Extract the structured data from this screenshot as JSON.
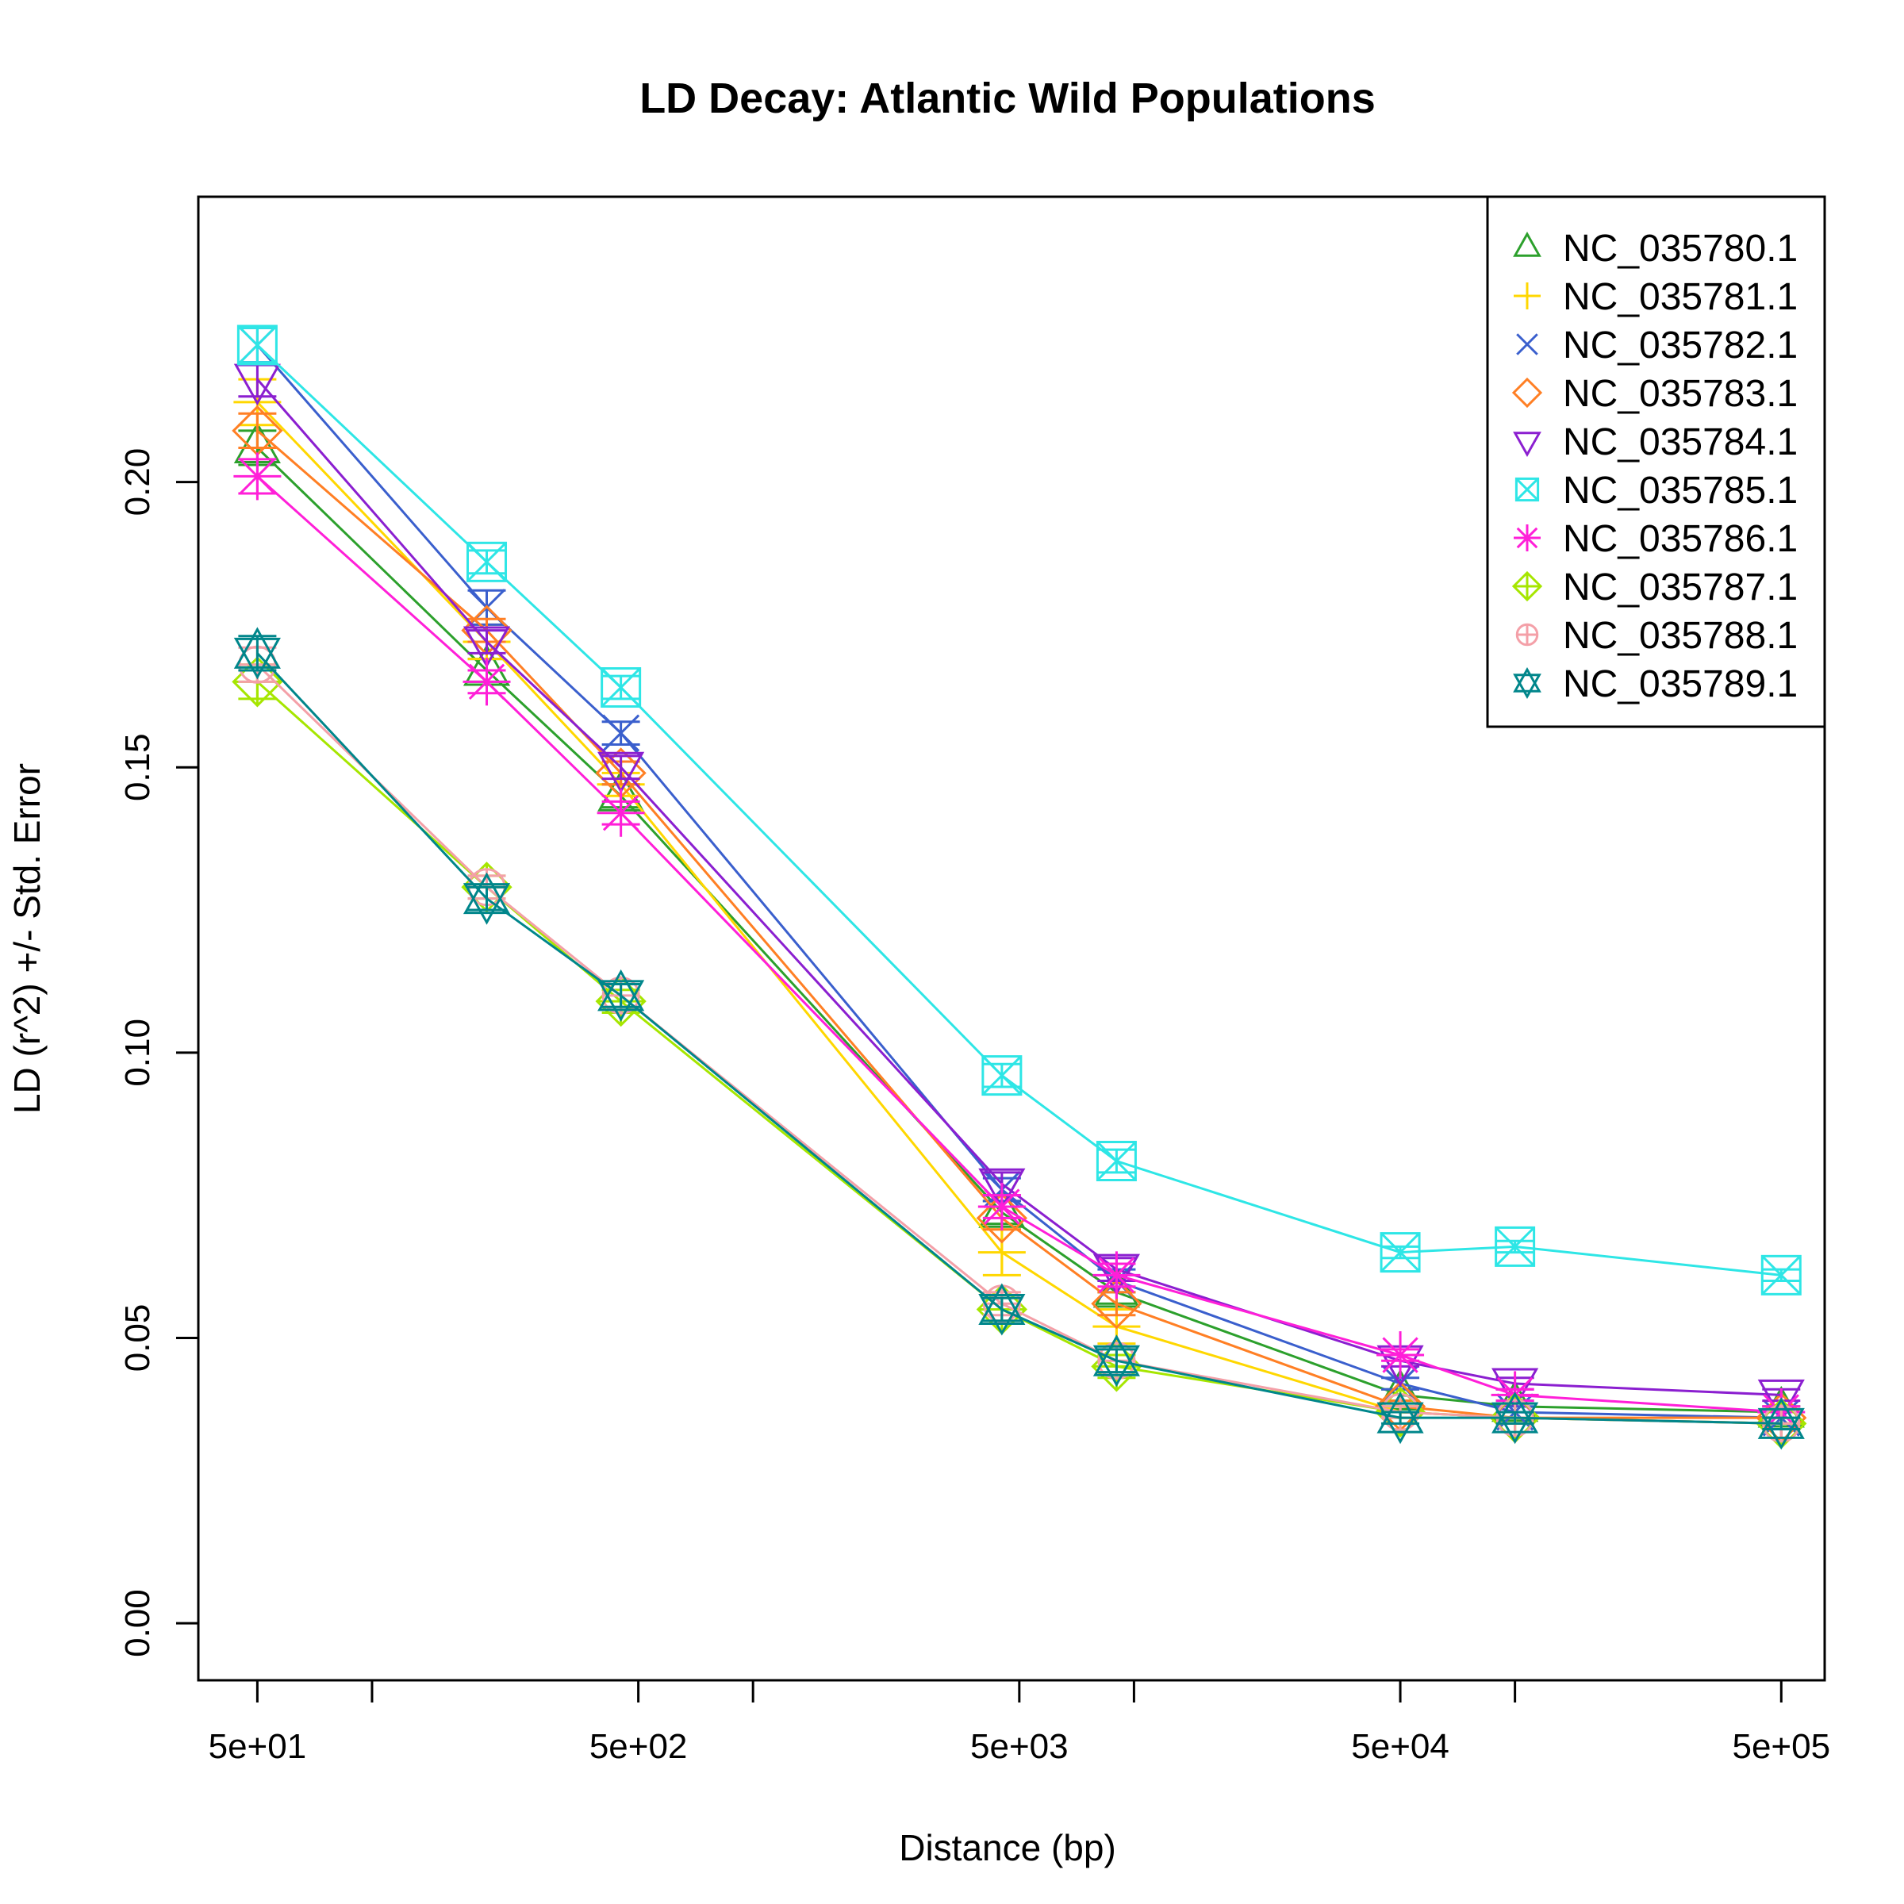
{
  "chart_data": {
    "type": "line",
    "title": "LD Decay: Atlantic Wild Populations",
    "xlabel": "Distance (bp)",
    "ylabel": "LD (r^2) +/- Std. Error",
    "xscale": "log10",
    "xlim": [
      35,
      650000
    ],
    "ylim": [
      -0.01,
      0.25
    ],
    "x_ticks": [
      50,
      100,
      500,
      1000,
      5000,
      10000,
      50000,
      100000,
      500000
    ],
    "x_tick_labels": [
      {
        "value": 50,
        "label": "5e+01"
      },
      {
        "value": 500,
        "label": "5e+02"
      },
      {
        "value": 5000,
        "label": "5e+03"
      },
      {
        "value": 50000,
        "label": "5e+04"
      },
      {
        "value": 500000,
        "label": "5e+05"
      }
    ],
    "y_ticks": [
      {
        "value": 0.0,
        "label": "0.00"
      },
      {
        "value": 0.05,
        "label": "0.05"
      },
      {
        "value": 0.1,
        "label": "0.10"
      },
      {
        "value": 0.15,
        "label": "0.15"
      },
      {
        "value": 0.2,
        "label": "0.20"
      }
    ],
    "legend_position": "top-right",
    "x": [
      50,
      200,
      450,
      4500,
      9000,
      50000,
      100000,
      500000
    ],
    "series": [
      {
        "name": "NC_035780.1",
        "color": "#2ca02c",
        "marker": "triangle-up",
        "values": [
          0.206,
          0.167,
          0.145,
          0.072,
          0.058,
          0.04,
          0.038,
          0.037
        ],
        "errors": [
          0.003,
          0.002,
          0.002,
          0.002,
          0.002,
          0.001,
          0.001,
          0.001
        ]
      },
      {
        "name": "NC_035781.1",
        "color": "#ffd700",
        "marker": "plus",
        "values": [
          0.214,
          0.172,
          0.147,
          0.065,
          0.052,
          0.037,
          0.036,
          0.035
        ],
        "errors": [
          0.004,
          0.003,
          0.002,
          0.004,
          0.003,
          0.001,
          0.001,
          0.001
        ]
      },
      {
        "name": "NC_035782.1",
        "color": "#3a5fcd",
        "marker": "x",
        "values": [
          0.224,
          0.178,
          0.156,
          0.076,
          0.06,
          0.042,
          0.037,
          0.036
        ],
        "errors": [
          0.003,
          0.003,
          0.002,
          0.002,
          0.002,
          0.001,
          0.001,
          0.001
        ]
      },
      {
        "name": "NC_035783.1",
        "color": "#ff7f24",
        "marker": "diamond",
        "values": [
          0.209,
          0.174,
          0.149,
          0.071,
          0.056,
          0.038,
          0.036,
          0.036
        ],
        "errors": [
          0.003,
          0.002,
          0.002,
          0.002,
          0.002,
          0.001,
          0.001,
          0.001
        ]
      },
      {
        "name": "NC_035784.1",
        "color": "#8b1fd0",
        "marker": "triangle-down",
        "values": [
          0.218,
          0.172,
          0.15,
          0.077,
          0.062,
          0.046,
          0.042,
          0.04
        ],
        "errors": [
          0.003,
          0.002,
          0.002,
          0.002,
          0.002,
          0.001,
          0.001,
          0.001
        ]
      },
      {
        "name": "NC_035785.1",
        "color": "#2ee6e6",
        "marker": "square-x",
        "values": [
          0.224,
          0.186,
          0.164,
          0.096,
          0.081,
          0.065,
          0.066,
          0.061
        ],
        "errors": [
          0.003,
          0.002,
          0.002,
          0.002,
          0.002,
          0.001,
          0.001,
          0.001
        ]
      },
      {
        "name": "NC_035786.1",
        "color": "#ff1fd8",
        "marker": "asterisk",
        "values": [
          0.201,
          0.165,
          0.142,
          0.073,
          0.061,
          0.047,
          0.04,
          0.037
        ],
        "errors": [
          0.003,
          0.002,
          0.002,
          0.002,
          0.002,
          0.001,
          0.001,
          0.001
        ]
      },
      {
        "name": "NC_035787.1",
        "color": "#a6e600",
        "marker": "diamond-plus",
        "values": [
          0.165,
          0.129,
          0.109,
          0.055,
          0.045,
          0.037,
          0.036,
          0.035
        ],
        "errors": [
          0.003,
          0.002,
          0.002,
          0.002,
          0.002,
          0.001,
          0.001,
          0.001
        ]
      },
      {
        "name": "NC_035788.1",
        "color": "#f4a0a8",
        "marker": "circle-plus",
        "values": [
          0.168,
          0.129,
          0.11,
          0.056,
          0.046,
          0.037,
          0.036,
          0.035
        ],
        "errors": [
          0.003,
          0.002,
          0.002,
          0.002,
          0.002,
          0.001,
          0.001,
          0.001
        ]
      },
      {
        "name": "NC_035789.1",
        "color": "#00868b",
        "marker": "star-of-david",
        "values": [
          0.17,
          0.127,
          0.11,
          0.055,
          0.046,
          0.036,
          0.036,
          0.035
        ],
        "errors": [
          0.003,
          0.002,
          0.002,
          0.002,
          0.002,
          0.001,
          0.001,
          0.001
        ]
      }
    ]
  }
}
